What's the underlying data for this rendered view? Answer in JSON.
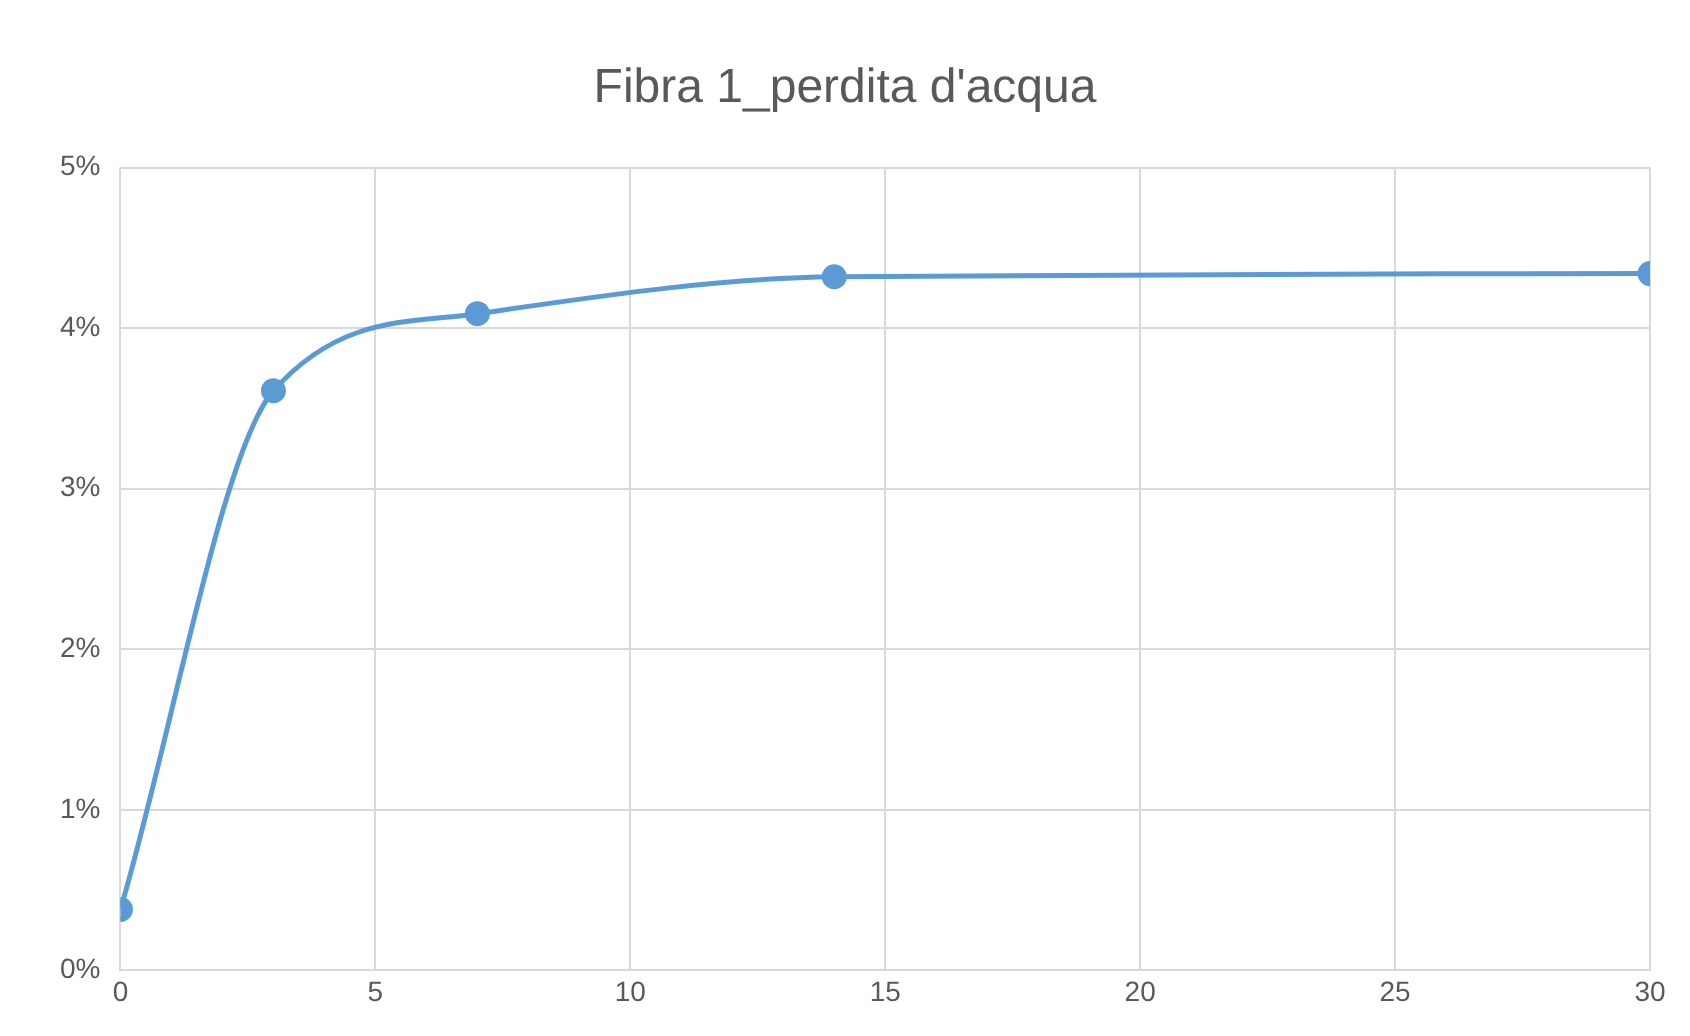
{
  "chart_data": {
    "type": "line",
    "title": "Fibra 1_perdita d'acqua",
    "x": [
      0,
      3,
      7,
      14,
      30
    ],
    "series": [
      {
        "color": "#5b9bd5",
        "values": [
          0.38,
          3.61,
          4.09,
          4.32,
          4.34
        ]
      }
    ],
    "xlim": [
      0,
      30
    ],
    "xticks": [
      0,
      5,
      10,
      15,
      20,
      25,
      30
    ],
    "ylim": [
      0,
      5
    ],
    "yticks": [
      {
        "value": 0,
        "label": "0%"
      },
      {
        "value": 1,
        "label": "1%"
      },
      {
        "value": 2,
        "label": "2%"
      },
      {
        "value": 3,
        "label": "3%"
      },
      {
        "value": 4,
        "label": "4%"
      },
      {
        "value": 5,
        "label": "5%"
      }
    ],
    "grid": true,
    "legend": false,
    "marker": "circle",
    "line_style": "solid"
  }
}
